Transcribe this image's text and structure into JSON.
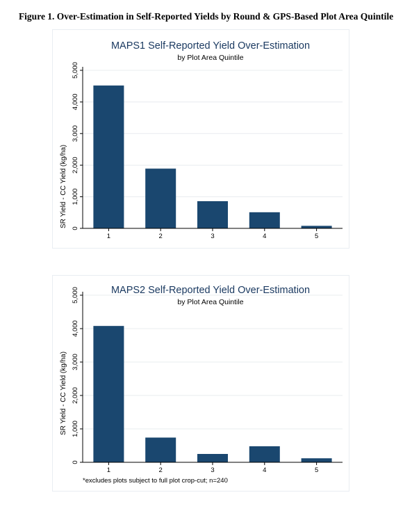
{
  "figure_title": "Figure 1. Over-Estimation in Self-Reported Yields by Round & GPS-Based Plot Area Quintile",
  "colors": {
    "bar": "#1a476f",
    "title": "#1b3a61",
    "grid": "#e8ecef",
    "frame": "#e9edf2"
  },
  "chart_data": [
    {
      "type": "bar",
      "title": "MAPS1 Self-Reported Yield Over-Estimation",
      "subtitle": "by Plot Area Quintile",
      "ylabel": "SR Yield - CC Yield (kg/ha)",
      "xlabel": "",
      "categories": [
        "1",
        "2",
        "3",
        "4",
        "5"
      ],
      "values": [
        4520,
        1890,
        860,
        510,
        80
      ],
      "ylim": [
        0,
        5000
      ],
      "yticks": [
        "0",
        "1,000",
        "2,000",
        "3,000",
        "4,000",
        "5,000"
      ],
      "grid": true,
      "note": ""
    },
    {
      "type": "bar",
      "title": "MAPS2 Self-Reported Yield Over-Estimation",
      "subtitle": "by Plot Area Quintile",
      "ylabel": "SR Yield - CC Yield (kg/ha)",
      "xlabel": "",
      "categories": [
        "1",
        "2",
        "3",
        "4",
        "5"
      ],
      "values": [
        4080,
        740,
        250,
        480,
        120
      ],
      "ylim": [
        0,
        5000
      ],
      "yticks": [
        "0",
        "1,000",
        "2,000",
        "3,000",
        "4,000",
        "5,000"
      ],
      "grid": true,
      "note": "*excludes plots subject to full plot crop-cut; n=240"
    }
  ]
}
